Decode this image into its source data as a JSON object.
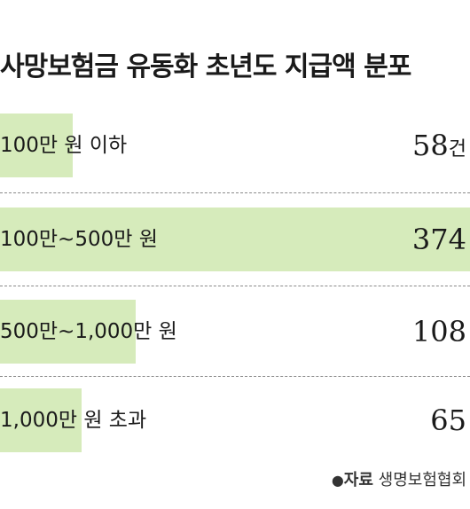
{
  "chart_data": {
    "type": "bar",
    "title": "사망보험금 유동화 초년도 지급액 분포",
    "categories": [
      "100만 원 이하",
      "100만~500만 원",
      "500만~1,000만 원",
      "1,000만 원 초과"
    ],
    "values": [
      58,
      374,
      108,
      65
    ],
    "value_labels": [
      "58",
      "374",
      "108",
      "65"
    ],
    "first_value_unit": "건",
    "bar_color": "#d6ebbb",
    "source_label": "자료",
    "source_text": "생명보험협회"
  }
}
